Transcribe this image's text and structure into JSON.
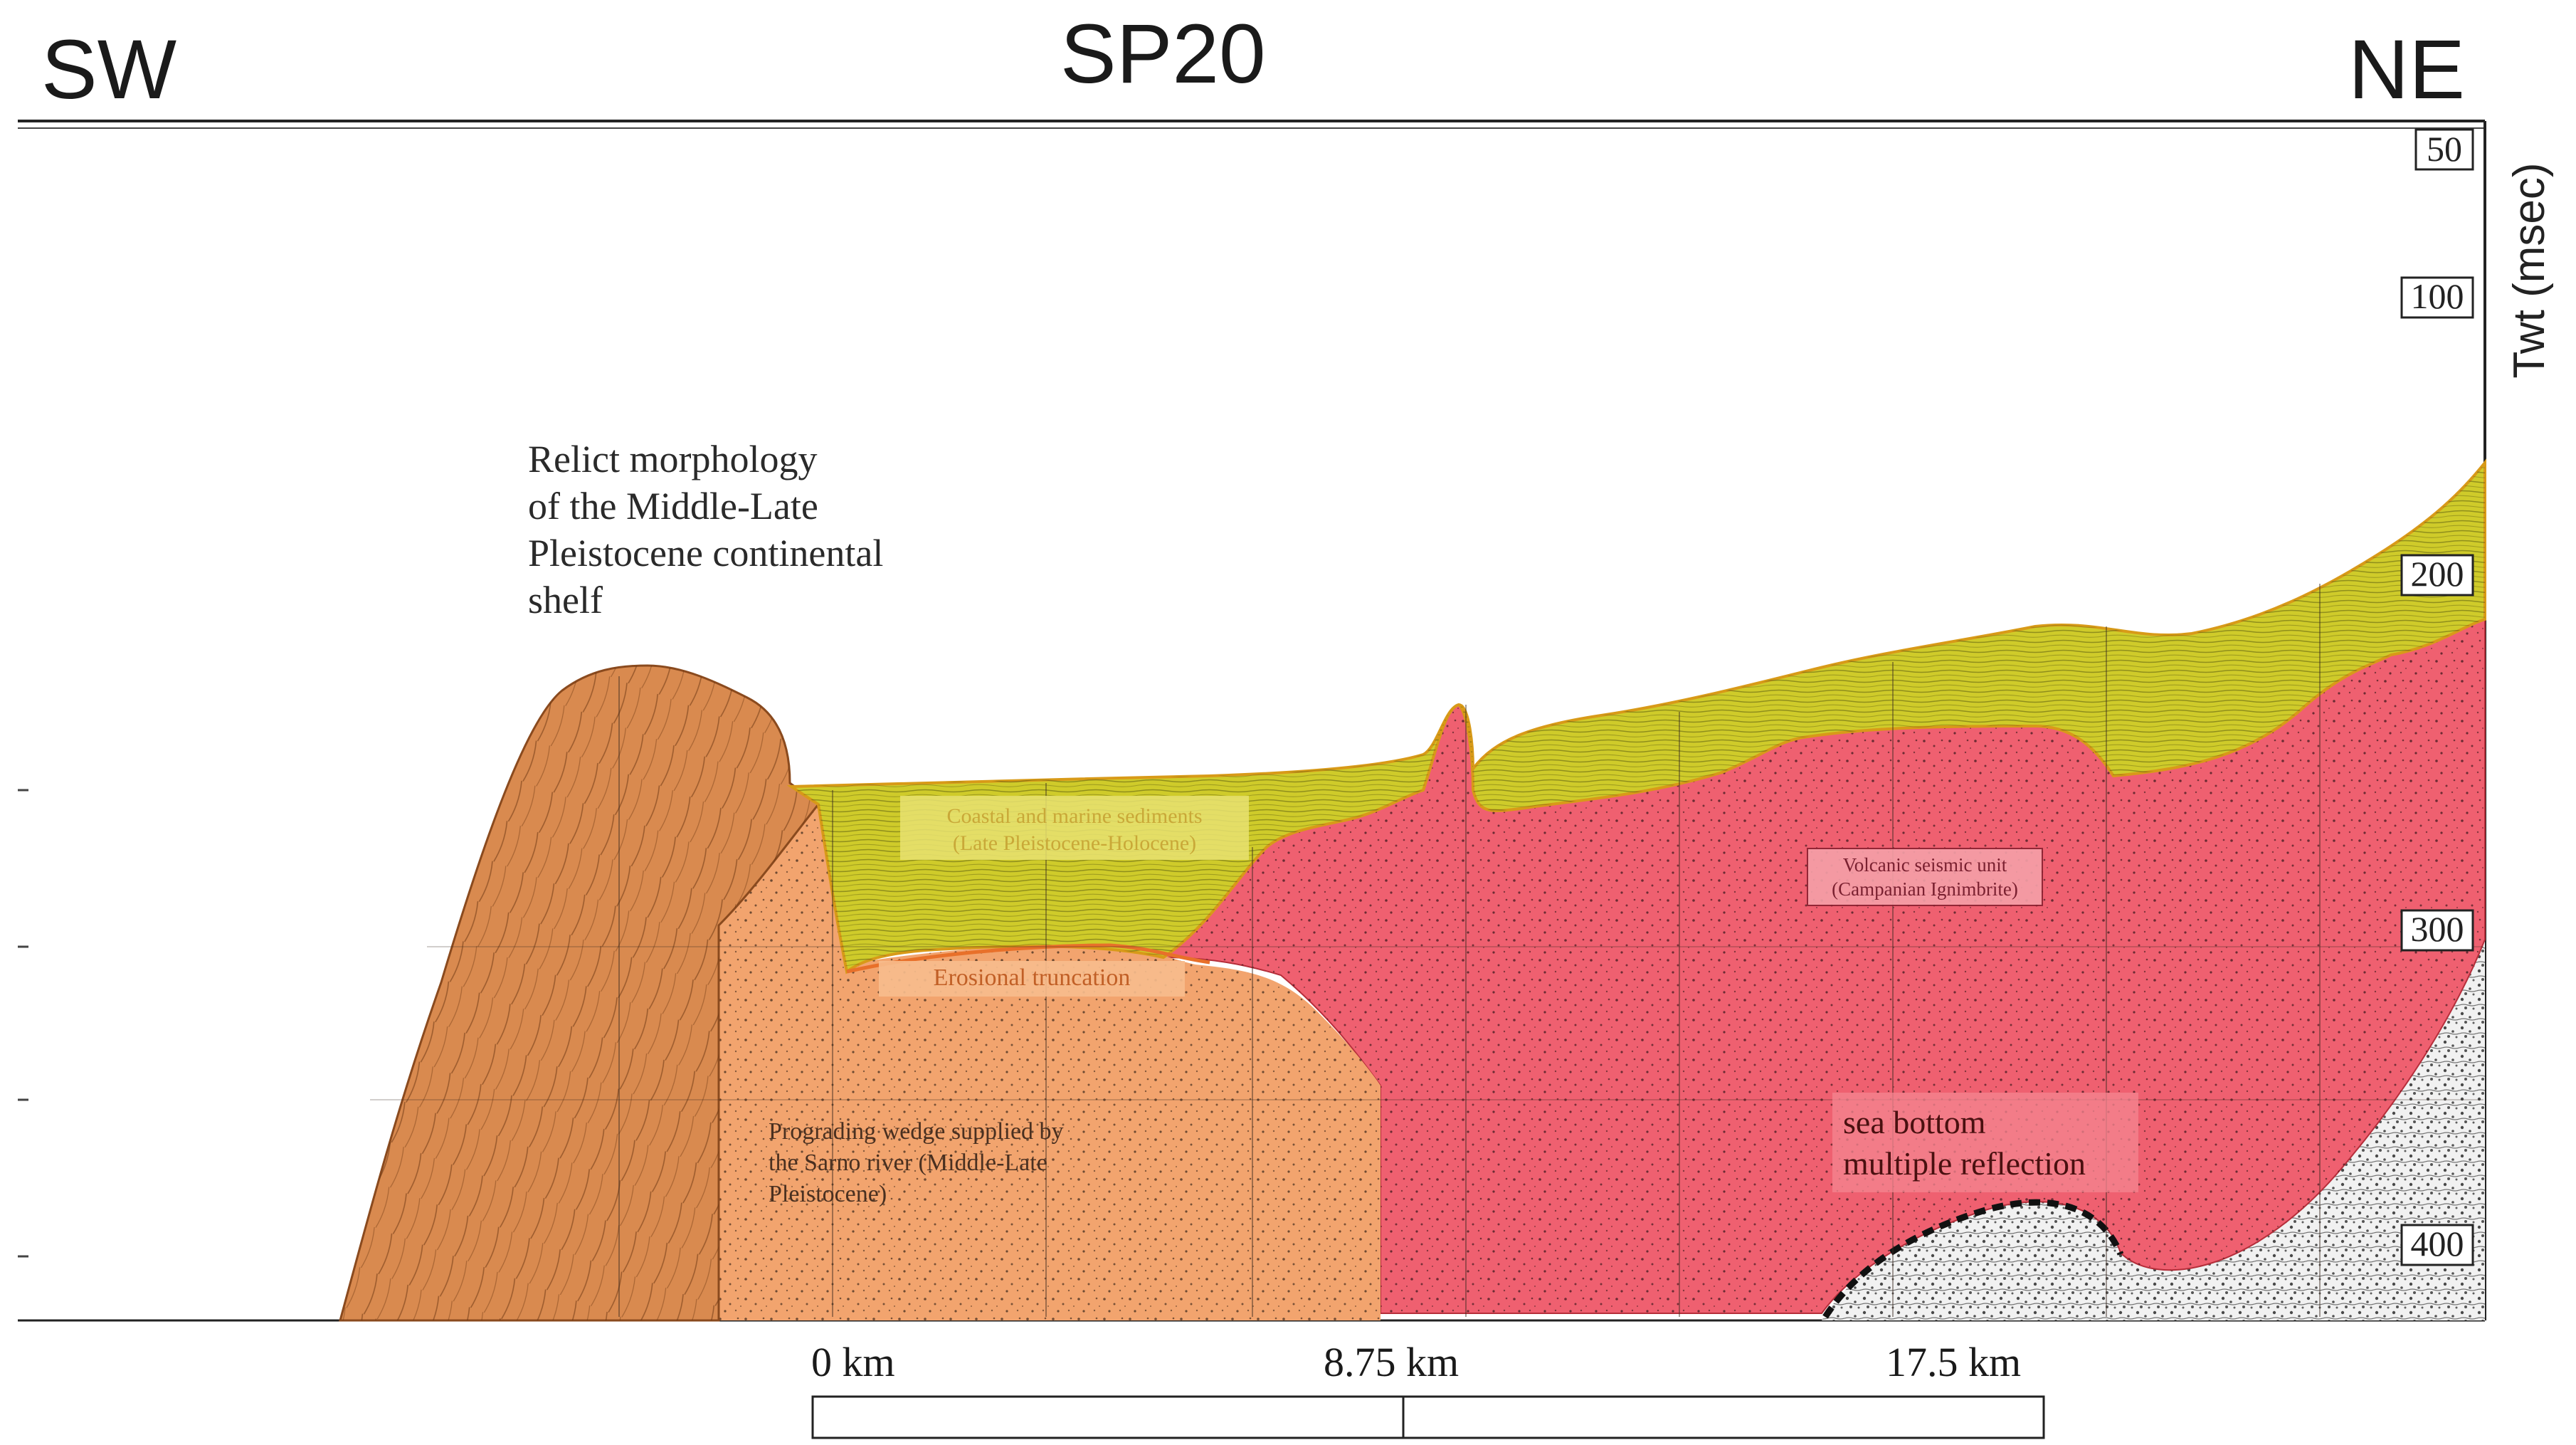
{
  "header": {
    "left_direction": "SW",
    "title": "SP20",
    "right_direction": "NE"
  },
  "axis": {
    "title": "Twt (msec)",
    "ticks": [
      "50",
      "100",
      "200",
      "300",
      "400"
    ]
  },
  "units": {
    "relict": "Relict morphology\nof the Middle-Late\nPleistocene continental\nshelf",
    "coastal": "Coastal and marine sediments\n(Late Pleistocene-Holocene)",
    "volcanic": "Volcanic seismic unit\n(Campanian Ignimbrite)",
    "erosional": "Erosional truncation",
    "prograding": "Prograding wedge supplied by\nthe Sarno river (Middle-Late\nPleistocene)",
    "seabottom": "sea bottom\nmultiple reflection"
  },
  "scale_bar": {
    "labels": [
      "0 km",
      "8.75 km",
      "17.5 km"
    ]
  },
  "colors": {
    "prograding": "#f2a46e",
    "relict": "#d98a4f",
    "coastal": "#cfcb2a",
    "volcanic": "#ef6070",
    "erosional_line": "#e8702a",
    "boundary": "#e0a020"
  }
}
